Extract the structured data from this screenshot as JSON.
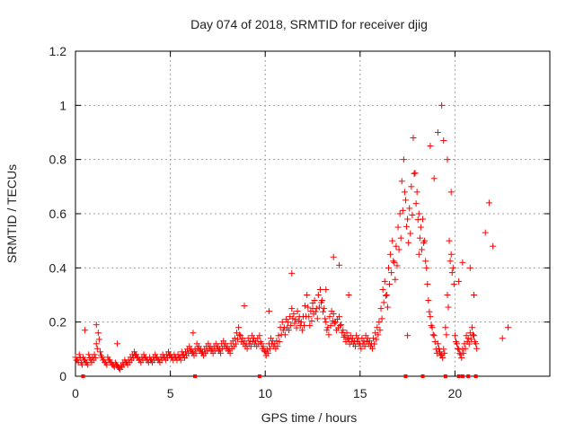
{
  "chart_data": {
    "type": "scatter",
    "title": "Day 074 of 2018, SRMTID for receiver djig",
    "xlabel": "GPS time / hours",
    "ylabel": "SRMTID / TECUs",
    "xlim": [
      0,
      25
    ],
    "ylim": [
      0,
      1.2
    ],
    "xticks": [
      0,
      5,
      10,
      15,
      20
    ],
    "xtick_labels": [
      "0",
      "5",
      "10",
      "15",
      "20"
    ],
    "yticks": [
      0,
      0.2,
      0.4,
      0.6,
      0.8,
      1.0,
      1.2
    ],
    "ytick_labels": [
      "0",
      "0.2",
      "0.4",
      "0.6",
      "0.8",
      "1",
      "1.2"
    ],
    "grid": true,
    "marker": "plus",
    "color": "#ff0000",
    "series": [
      {
        "name": "SRMTID",
        "x_start": 0.0,
        "x_step": 0.1,
        "y": [
          0.07,
          0.06,
          0.08,
          0.05,
          0.07,
          0.06,
          0.05,
          0.08,
          0.06,
          0.07,
          0.08,
          0.12,
          0.16,
          0.09,
          0.07,
          0.06,
          0.05,
          0.07,
          0.06,
          0.05,
          0.04,
          0.05,
          0.04,
          0.03,
          0.04,
          0.05,
          0.06,
          0.05,
          0.06,
          0.07,
          0.08,
          0.09,
          0.08,
          0.07,
          0.06,
          0.07,
          0.08,
          0.07,
          0.06,
          0.07,
          0.06,
          0.07,
          0.08,
          0.07,
          0.06,
          0.07,
          0.08,
          0.07,
          0.08,
          0.09,
          0.08,
          0.07,
          0.08,
          0.07,
          0.08,
          0.07,
          0.09,
          0.08,
          0.09,
          0.1,
          0.11,
          0.1,
          0.09,
          0.1,
          0.12,
          0.11,
          0.1,
          0.09,
          0.1,
          0.11,
          0.12,
          0.11,
          0.1,
          0.11,
          0.12,
          0.11,
          0.1,
          0.12,
          0.13,
          0.12,
          0.11,
          0.1,
          0.12,
          0.13,
          0.14,
          0.16,
          0.18,
          0.15,
          0.14,
          0.13,
          0.12,
          0.14,
          0.13,
          0.15,
          0.14,
          0.13,
          0.14,
          0.15,
          0.12,
          0.11,
          0.09,
          0.1,
          0.12,
          0.14,
          0.13,
          0.12,
          0.13,
          0.15,
          0.18,
          0.2,
          0.18,
          0.21,
          0.2,
          0.22,
          0.25,
          0.23,
          0.21,
          0.24,
          0.22,
          0.2,
          0.22,
          0.26,
          0.3,
          0.22,
          0.24,
          0.27,
          0.28,
          0.25,
          0.3,
          0.32,
          0.28,
          0.25,
          0.2,
          0.18,
          0.22,
          0.24,
          0.23,
          0.2,
          0.21,
          0.22,
          0.19,
          0.17,
          0.15,
          0.16,
          0.14,
          0.15,
          0.14,
          0.13,
          0.15,
          0.14,
          0.12,
          0.14,
          0.13,
          0.15,
          0.14,
          0.13,
          0.12,
          0.14,
          0.16,
          0.18,
          0.2,
          0.25,
          0.32,
          0.35,
          0.3,
          0.4,
          0.45,
          0.5,
          0.42,
          0.48,
          0.55,
          0.6,
          0.72,
          0.8,
          0.65,
          0.58,
          0.62,
          0.7,
          0.88,
          0.75,
          0.68,
          0.6,
          0.55,
          0.58,
          0.5,
          0.4,
          0.28,
          0.22,
          0.18,
          0.15,
          0.1,
          0.12,
          0.09,
          0.08,
          0.1,
          0.18,
          0.3,
          0.5,
          0.45,
          0.4,
          0.15,
          0.12,
          0.1,
          0.08,
          0.1,
          0.12,
          0.15,
          0.14,
          0.16,
          0.18,
          0.15,
          0.12
        ]
      },
      {
        "name": "outliers",
        "points": [
          [
            0.5,
            0.17
          ],
          [
            1.1,
            0.19
          ],
          [
            2.2,
            0.12
          ],
          [
            6.2,
            0.16
          ],
          [
            8.9,
            0.26
          ],
          [
            10.2,
            0.24
          ],
          [
            11.4,
            0.38
          ],
          [
            12.5,
            0.25
          ],
          [
            13.2,
            0.32
          ],
          [
            13.6,
            0.44
          ],
          [
            13.9,
            0.41
          ],
          [
            14.4,
            0.3
          ],
          [
            17.5,
            0.15
          ],
          [
            18.1,
            0.45
          ],
          [
            18.7,
            0.85
          ],
          [
            18.9,
            0.73
          ],
          [
            19.1,
            0.9
          ],
          [
            19.3,
            1.0
          ],
          [
            19.4,
            0.87
          ],
          [
            19.6,
            0.8
          ],
          [
            19.8,
            0.68
          ],
          [
            20.2,
            0.35
          ],
          [
            20.4,
            0.42
          ],
          [
            20.8,
            0.4
          ],
          [
            21.0,
            0.3
          ],
          [
            21.6,
            0.53
          ],
          [
            21.8,
            0.64
          ],
          [
            22.0,
            0.48
          ],
          [
            22.5,
            0.14
          ],
          [
            22.8,
            0.18
          ]
        ]
      }
    ],
    "gap_markers_x": [
      0.4,
      6.3,
      9.7,
      17.4,
      18.3,
      19.5,
      20.2,
      20.4,
      20.7,
      21.1
    ]
  }
}
